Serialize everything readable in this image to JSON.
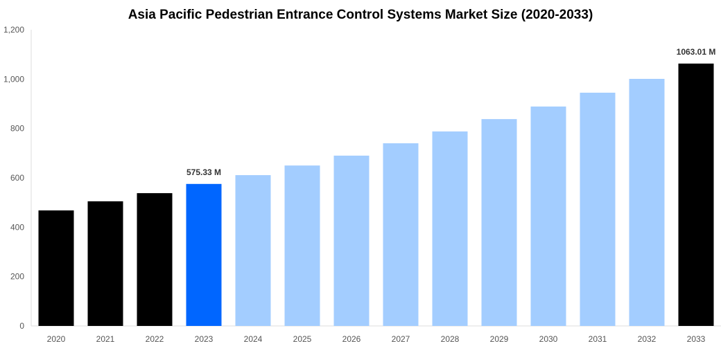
{
  "chart_data": {
    "type": "bar",
    "title": "Asia Pacific Pedestrian Entrance Control Systems Market Size (2020-2033)",
    "xlabel": "",
    "ylabel": "",
    "categories": [
      "2020",
      "2021",
      "2022",
      "2023",
      "2024",
      "2025",
      "2026",
      "2027",
      "2028",
      "2029",
      "2030",
      "2031",
      "2032",
      "2033"
    ],
    "values": [
      468,
      505,
      538,
      575.33,
      611,
      650,
      690,
      740,
      788,
      838,
      889,
      945,
      1001,
      1063.01
    ],
    "colors": [
      "#000000",
      "#000000",
      "#000000",
      "#0066ff",
      "#a3cdff",
      "#a3cdff",
      "#a3cdff",
      "#a3cdff",
      "#a3cdff",
      "#a3cdff",
      "#a3cdff",
      "#a3cdff",
      "#a3cdff",
      "#000000"
    ],
    "data_labels": {
      "3": "575.33 M",
      "13": "1063.01 M"
    },
    "ylim": [
      0,
      1200
    ],
    "yticks": [
      0,
      200,
      400,
      600,
      800,
      1000,
      1200
    ],
    "ytick_labels": [
      "0",
      "200",
      "400",
      "600",
      "800",
      "1,000",
      "1,200"
    ],
    "grid": false,
    "legend": "none"
  }
}
